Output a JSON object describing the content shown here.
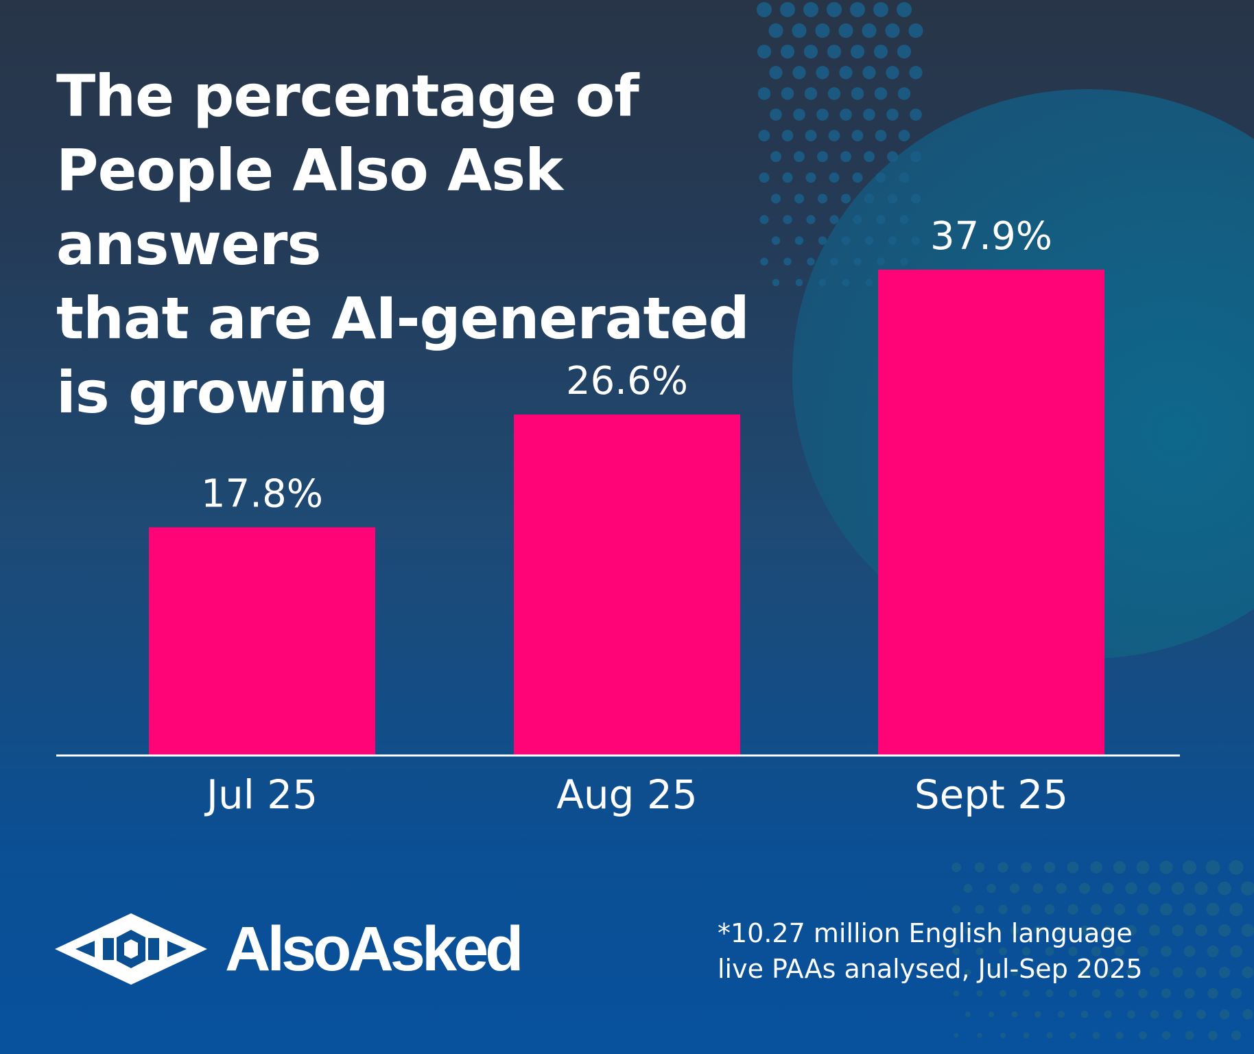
{
  "title_lines": [
    "The percentage of",
    "People Also Ask answers",
    "that are AI-generated",
    "is growing"
  ],
  "chart_data": {
    "type": "bar",
    "title": "The percentage of People Also Ask answers that are AI-generated is growing",
    "categories": [
      "Jul 25",
      "Aug 25",
      "Sept 25"
    ],
    "values": [
      17.8,
      26.6,
      37.9
    ],
    "value_labels": [
      "17.8%",
      "26.6%",
      "37.9%"
    ],
    "unit": "%",
    "xlabel": "",
    "ylabel": "",
    "ylim": [
      0,
      40
    ],
    "grid": false,
    "bar_color": "#ff0477",
    "axis_color": "#ffffff"
  },
  "brand": {
    "name": "AlsoAsked",
    "logo_icon": "alsoasked-logo-icon"
  },
  "footnote": [
    "*10.27 million English language",
    "live PAAs analysed, Jul-Sep 2025"
  ],
  "colors": {
    "text": "#ffffff",
    "bar": "#ff0477",
    "background_top": "#283548",
    "background_bottom": "#08519d",
    "blob": "#135e82"
  }
}
